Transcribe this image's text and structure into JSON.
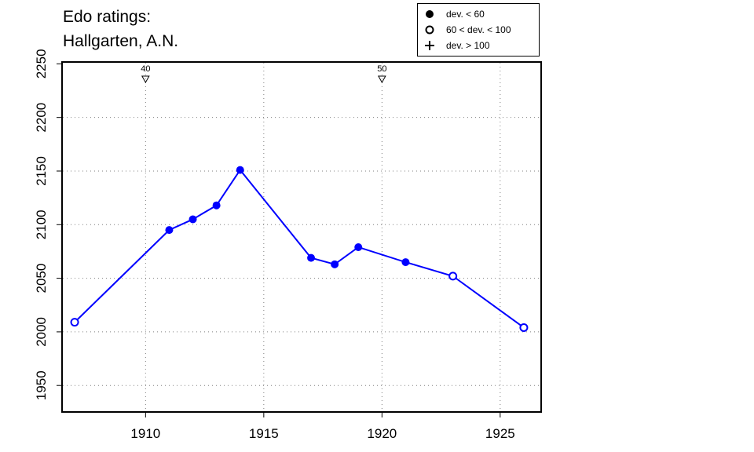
{
  "title_lines": [
    "Edo ratings:",
    "Hallgarten, A.N."
  ],
  "legend": [
    {
      "label": "dev. < 60",
      "symbol": "filled-circle"
    },
    {
      "label": "60 < dev. < 100",
      "symbol": "open-circle"
    },
    {
      "label": "dev. > 100",
      "symbol": "plus"
    }
  ],
  "colors": {
    "series": "#0000ff",
    "axis": "#000000",
    "grid": "#808080"
  },
  "chart_data": {
    "type": "line",
    "title": "Edo ratings: Hallgarten, A.N.",
    "xlabel": "",
    "ylabel": "",
    "xlim": [
      1906.5,
      1926.7
    ],
    "ylim": [
      1926,
      2251
    ],
    "xticks": [
      1910,
      1915,
      1920,
      1925
    ],
    "yticks": [
      1950,
      2000,
      2050,
      2100,
      2150,
      2200,
      2250
    ],
    "grid": true,
    "legend_position": "top-right",
    "series": [
      {
        "points": [
          {
            "x": 1907,
            "y": 2009,
            "dev": "60 < dev. < 100"
          },
          {
            "x": 1911,
            "y": 2095,
            "dev": "dev. < 60"
          },
          {
            "x": 1912,
            "y": 2105,
            "dev": "dev. < 60"
          },
          {
            "x": 1913,
            "y": 2118,
            "dev": "dev. < 60"
          },
          {
            "x": 1914,
            "y": 2151,
            "dev": "dev. < 60"
          },
          {
            "x": 1917,
            "y": 2069,
            "dev": "dev. < 60"
          },
          {
            "x": 1918,
            "y": 2063,
            "dev": "dev. < 60"
          },
          {
            "x": 1919,
            "y": 2079,
            "dev": "dev. < 60"
          },
          {
            "x": 1921,
            "y": 2065,
            "dev": "dev. < 60"
          },
          {
            "x": 1923,
            "y": 2052,
            "dev": "60 < dev. < 100"
          },
          {
            "x": 1926,
            "y": 2004,
            "dev": "60 < dev. < 100"
          }
        ]
      }
    ],
    "annotations": [
      {
        "x": 1910,
        "label": "40"
      },
      {
        "x": 1920,
        "label": "50"
      }
    ]
  }
}
